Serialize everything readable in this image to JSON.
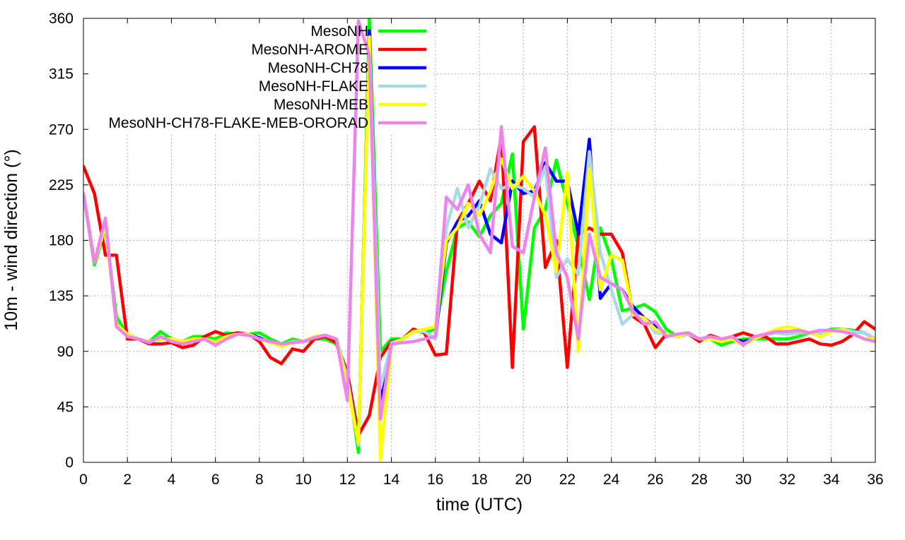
{
  "chart_data": {
    "type": "line",
    "title": "",
    "xlabel": "time (UTC)",
    "ylabel": "10m - wind direction (°)",
    "xlim": [
      0,
      36
    ],
    "ylim": [
      0,
      360
    ],
    "x_ticks": [
      0,
      2,
      4,
      6,
      8,
      10,
      12,
      14,
      16,
      18,
      20,
      22,
      24,
      26,
      28,
      30,
      32,
      34,
      36
    ],
    "y_ticks": [
      0,
      45,
      90,
      135,
      180,
      225,
      270,
      315,
      360
    ],
    "grid": true,
    "legend_position": "top-center",
    "x": [
      0,
      0.5,
      1,
      1.5,
      2,
      2.5,
      3,
      3.5,
      4,
      4.5,
      5,
      5.5,
      6,
      6.5,
      7,
      7.5,
      8,
      8.5,
      9,
      9.5,
      10,
      10.5,
      11,
      11.5,
      12,
      12.5,
      13,
      13.5,
      14,
      14.5,
      15,
      15.5,
      16,
      16.5,
      17,
      17.5,
      18,
      18.5,
      19,
      19.5,
      20,
      20.5,
      21,
      21.5,
      22,
      22.5,
      23,
      23.5,
      24,
      24.5,
      25,
      25.5,
      26,
      26.5,
      27,
      27.5,
      28,
      28.5,
      29,
      29.5,
      30,
      30.5,
      31,
      31.5,
      32,
      32.5,
      33,
      33.5,
      34,
      34.5,
      35,
      35.5,
      36
    ],
    "series": [
      {
        "name": "MesoNH",
        "color": "#00ff00",
        "values": [
          218,
          160,
          190,
          118,
          103,
          100,
          98,
          106,
          100,
          98,
          102,
          102,
          100,
          105,
          104,
          104,
          105,
          100,
          96,
          100,
          98,
          100,
          100,
          96,
          72,
          8,
          360,
          90,
          100,
          100,
          107,
          105,
          108,
          155,
          190,
          195,
          183,
          200,
          210,
          250,
          108,
          190,
          205,
          245,
          210,
          175,
          132,
          190,
          165,
          123,
          125,
          128,
          122,
          108,
          102,
          105,
          100,
          100,
          95,
          98,
          100,
          100,
          100,
          100,
          100,
          102,
          105,
          105,
          108,
          108,
          107,
          105,
          100
        ]
      },
      {
        "name": "MesoNH-AROME",
        "color": "#ff0000",
        "values": [
          240,
          218,
          168,
          168,
          100,
          100,
          96,
          96,
          97,
          93,
          95,
          102,
          106,
          103,
          105,
          104,
          98,
          85,
          80,
          92,
          90,
          100,
          102,
          97,
          73,
          22,
          38,
          85,
          98,
          100,
          108,
          105,
          87,
          88,
          195,
          210,
          228,
          212,
          265,
          77,
          260,
          272,
          158,
          180,
          77,
          185,
          190,
          185,
          185,
          170,
          118,
          112,
          93,
          104,
          102,
          104,
          98,
          103,
          100,
          102,
          105,
          102,
          102,
          96,
          96,
          98,
          100,
          96,
          95,
          98,
          104,
          114,
          108
        ]
      },
      {
        "name": "MesoNH-CH78",
        "color": "#0000ff",
        "values": [
          218,
          162,
          192,
          112,
          104,
          100,
          98,
          100,
          100,
          98,
          100,
          100,
          98,
          102,
          104,
          104,
          101,
          97,
          95,
          98,
          98,
          102,
          103,
          100,
          68,
          15,
          350,
          48,
          97,
          100,
          106,
          106,
          100,
          178,
          195,
          200,
          212,
          185,
          178,
          228,
          218,
          220,
          243,
          228,
          228,
          185,
          262,
          133,
          145,
          140,
          126,
          117,
          110,
          104,
          102,
          104,
          100,
          100,
          98,
          100,
          98,
          100,
          104,
          105,
          104,
          105,
          105,
          105,
          107,
          108,
          106,
          105,
          100
        ]
      },
      {
        "name": "MesoNH-FLAKE",
        "color": "#add8e6",
        "values": [
          218,
          162,
          192,
          112,
          103,
          100,
          98,
          100,
          100,
          98,
          100,
          100,
          98,
          102,
          104,
          104,
          100,
          97,
          95,
          98,
          98,
          102,
          103,
          100,
          68,
          14,
          340,
          60,
          97,
          100,
          106,
          106,
          100,
          190,
          222,
          190,
          208,
          238,
          222,
          225,
          222,
          215,
          240,
          150,
          165,
          152,
          252,
          170,
          140,
          112,
          120,
          117,
          105,
          104,
          102,
          104,
          100,
          100,
          98,
          100,
          96,
          100,
          104,
          105,
          104,
          105,
          105,
          105,
          107,
          108,
          106,
          105,
          100
        ]
      },
      {
        "name": "MesoNH-MEB",
        "color": "#ffff00",
        "values": [
          218,
          162,
          192,
          112,
          104,
          100,
          98,
          100,
          100,
          98,
          100,
          100,
          98,
          102,
          104,
          104,
          100,
          97,
          94,
          97,
          98,
          102,
          103,
          100,
          62,
          16,
          345,
          2,
          95,
          100,
          106,
          108,
          110,
          180,
          190,
          210,
          200,
          220,
          246,
          222,
          232,
          220,
          200,
          155,
          235,
          90,
          238,
          140,
          168,
          164,
          120,
          117,
          108,
          104,
          102,
          105,
          100,
          100,
          98,
          100,
          95,
          100,
          104,
          108,
          110,
          108,
          105,
          102,
          106,
          108,
          104,
          100,
          100
        ]
      },
      {
        "name": "MesoNH-CH78-FLAKE-MEB-ORORAD",
        "color": "#ee82ee",
        "values": [
          218,
          162,
          198,
          110,
          102,
          100,
          97,
          102,
          98,
          96,
          98,
          100,
          95,
          100,
          104,
          103,
          100,
          98,
          96,
          97,
          98,
          101,
          103,
          100,
          50,
          358,
          330,
          35,
          96,
          97,
          98,
          100,
          102,
          215,
          205,
          225,
          185,
          170,
          272,
          175,
          170,
          215,
          255,
          170,
          150,
          100,
          185,
          150,
          145,
          140,
          122,
          112,
          114,
          102,
          104,
          105,
          100,
          102,
          100,
          102,
          95,
          102,
          104,
          106,
          106,
          107,
          105,
          107,
          107,
          106,
          104,
          100,
          98
        ]
      }
    ]
  }
}
